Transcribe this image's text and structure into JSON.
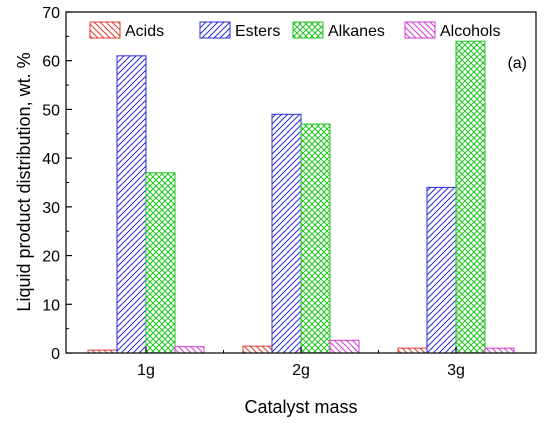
{
  "chart_data": {
    "type": "bar",
    "title": "",
    "panel_label": "(a)",
    "xlabel": "Catalyst mass",
    "ylabel": "Liquid product distribution, wt. %",
    "categories": [
      "1g",
      "2g",
      "3g"
    ],
    "ylim": [
      0,
      70
    ],
    "yticks": [
      0,
      10,
      20,
      30,
      40,
      50,
      60,
      70
    ],
    "grid": false,
    "legend_position": "top",
    "series": [
      {
        "name": "Acids",
        "color": "#e03a2f",
        "pattern": "hatch-down-right",
        "values": [
          0.6,
          1.4,
          1.0
        ]
      },
      {
        "name": "Esters",
        "color": "#2b2bd6",
        "pattern": "hatch-down-left",
        "values": [
          61,
          49,
          34
        ]
      },
      {
        "name": "Alkanes",
        "color": "#22c522",
        "pattern": "crosshatch",
        "values": [
          37,
          47,
          64
        ]
      },
      {
        "name": "Alcohols",
        "color": "#d23ad2",
        "pattern": "hatch-down-right",
        "values": [
          1.3,
          2.6,
          1.0
        ]
      }
    ]
  }
}
